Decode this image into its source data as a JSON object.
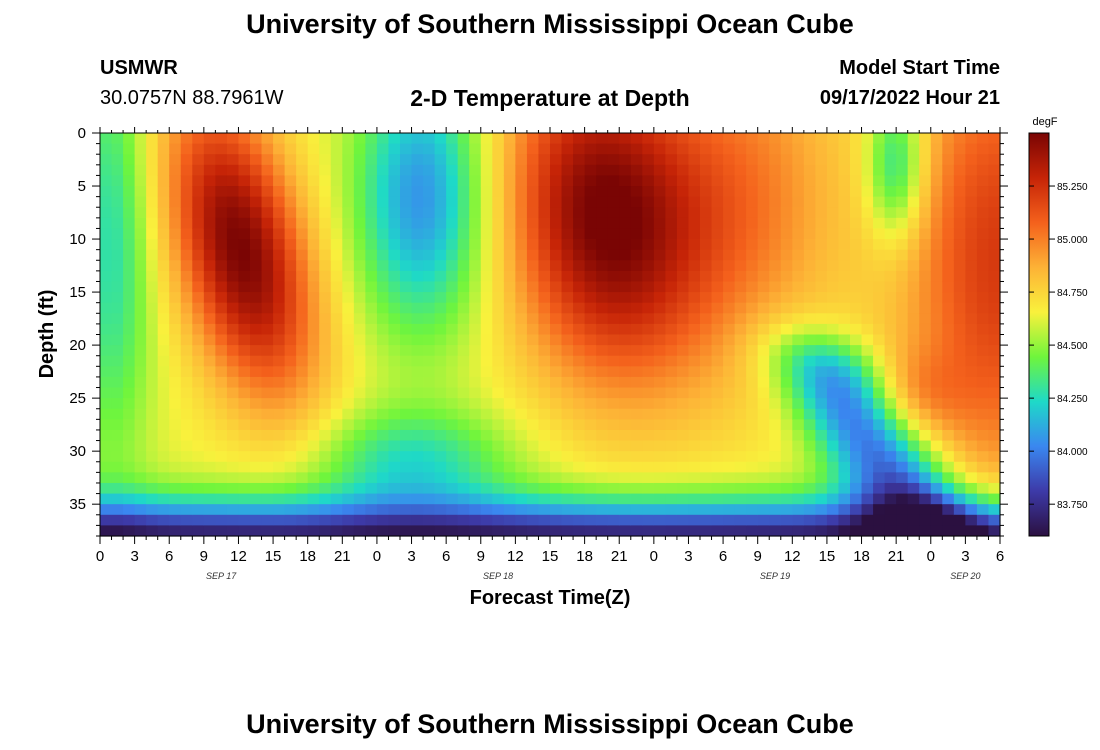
{
  "header": {
    "title": "University of Southern Mississippi Ocean Cube",
    "station": "USMWR",
    "coords": "30.0757N  88.7961W",
    "plot_title": "2-D Temperature at Depth",
    "model_label": "Model Start Time",
    "model_time": "09/17/2022 Hour 21"
  },
  "footer": {
    "title": "University of Southern Mississippi Ocean Cube"
  },
  "chart_data": {
    "type": "heatmap",
    "title": "2-D Temperature at Depth",
    "xlabel": "Forecast Time(Z)",
    "ylabel": "Depth (ft)",
    "x_ticks": [
      "0",
      "3",
      "6",
      "9",
      "12",
      "15",
      "18",
      "21",
      "0",
      "3",
      "6",
      "9",
      "12",
      "15",
      "18",
      "21",
      "0",
      "3",
      "6",
      "9",
      "12",
      "15",
      "18",
      "21",
      "0",
      "3",
      "6"
    ],
    "x_hours_range": [
      0,
      78
    ],
    "date_labels": [
      {
        "label": "SEP 17",
        "hour": 10.5
      },
      {
        "label": "SEP 18",
        "hour": 34.5
      },
      {
        "label": "SEP 19",
        "hour": 58.5
      },
      {
        "label": "SEP 20",
        "hour": 75
      }
    ],
    "y_ticks": [
      0,
      5,
      10,
      15,
      20,
      25,
      30,
      35
    ],
    "ylim": [
      0,
      38
    ],
    "y_inverted": true,
    "colorbar": {
      "unit": "degF",
      "range": [
        83.6,
        85.5
      ],
      "ticks": [
        "83.750",
        "84.000",
        "84.250",
        "84.500",
        "84.750",
        "85.000",
        "85.250"
      ],
      "colors": [
        "#2b1040",
        "#3d3aa8",
        "#3a87f0",
        "#1ed9c8",
        "#6ff53c",
        "#f9f13c",
        "#fdb236",
        "#f4611c",
        "#c62407",
        "#7a0504"
      ]
    },
    "grid": false,
    "legend": "colorbar-right"
  }
}
